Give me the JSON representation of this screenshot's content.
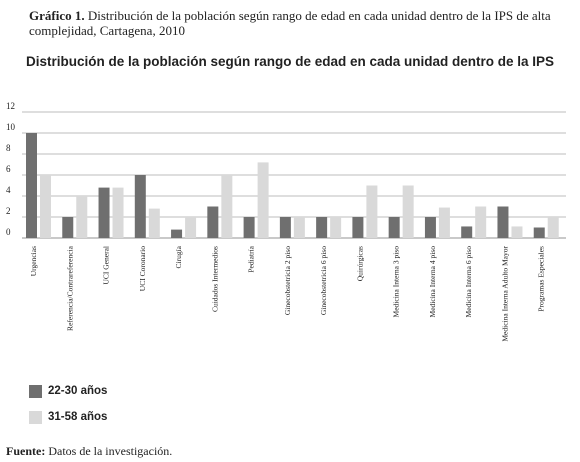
{
  "caption": {
    "label": "Gráfico 1.",
    "text": "Distribución de la población según  rango de edad en cada unidad dentro de la IPS de alta complejidad, Cartagena, 2010"
  },
  "colors": {
    "series1": "#6f6f6f",
    "series2": "#d9d9d9",
    "grid": "#a9a9a9",
    "text": "#222222"
  },
  "chart_data": {
    "type": "bar",
    "title": "Distribución de la población según rango de edad en cada unidad dentro de la IPS",
    "xlabel": "",
    "ylabel": "",
    "ylim": [
      0,
      12
    ],
    "yticks": [
      "0",
      "2",
      "4",
      "6",
      "8",
      "10",
      "12"
    ],
    "grid": true,
    "legend_position": "bottom-left",
    "categories": [
      "Urgencias",
      "Referencia/Contrareferencia",
      "UCI General",
      "UCI Coronario",
      "Cirugía",
      "Cuidados Intermedios",
      "Pediatría",
      "Ginecobstetricia 2 piso",
      "Ginecobstetricia 6 piso",
      "Quirúrgicas",
      "Medicina Interna 3 piso",
      "Medicina Interna 4 piso",
      "Medicina Interna 6 piso",
      "Medicina Interna Adulto Mayor",
      "Programas Especiales"
    ],
    "series": [
      {
        "name": "22-30 años",
        "values": [
          10,
          2,
          4.8,
          6,
          0.8,
          3,
          2,
          2,
          2,
          2,
          2,
          2,
          1.1,
          3,
          1
        ]
      },
      {
        "name": "31-58 años",
        "values": [
          6,
          4,
          4.8,
          2.8,
          2,
          6,
          7.2,
          2,
          2,
          5,
          5,
          2.9,
          3,
          1.1,
          2
        ]
      }
    ]
  },
  "legend": {
    "items": [
      "22-30 años",
      "31-58 años"
    ]
  },
  "source": {
    "label": "Fuente:",
    "text": "Datos de la investigación."
  }
}
